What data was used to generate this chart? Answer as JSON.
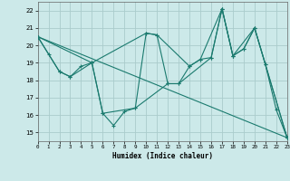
{
  "xlabel": "Humidex (Indice chaleur)",
  "background_color": "#cce9e9",
  "grid_color": "#aacccc",
  "line_color": "#1a7a6e",
  "series": [
    {
      "x": [
        0,
        1,
        2,
        3,
        4,
        5,
        6,
        7,
        8,
        9,
        10,
        11,
        12,
        13,
        14,
        15,
        16,
        17,
        18,
        19,
        20,
        21,
        22,
        23
      ],
      "y": [
        20.5,
        19.5,
        18.5,
        18.2,
        18.8,
        19.0,
        16.1,
        15.4,
        16.2,
        16.4,
        20.7,
        20.6,
        17.8,
        17.8,
        18.8,
        19.2,
        19.3,
        22.1,
        19.4,
        19.8,
        21.0,
        18.9,
        16.3,
        14.7
      ]
    },
    {
      "x": [
        0,
        23
      ],
      "y": [
        20.5,
        14.7
      ]
    },
    {
      "x": [
        0,
        5,
        10,
        11,
        14,
        15,
        17,
        18,
        20,
        21,
        23
      ],
      "y": [
        20.5,
        19.0,
        20.7,
        20.6,
        18.8,
        19.2,
        22.1,
        19.4,
        21.0,
        18.9,
        14.7
      ]
    },
    {
      "x": [
        0,
        2,
        3,
        5,
        6,
        9,
        12,
        13,
        16,
        17,
        18,
        19,
        20,
        23
      ],
      "y": [
        20.5,
        18.5,
        18.2,
        19.0,
        16.1,
        16.4,
        17.8,
        17.8,
        19.3,
        22.1,
        19.4,
        19.8,
        21.0,
        14.7
      ]
    }
  ],
  "xlim": [
    0,
    23
  ],
  "ylim": [
    14.5,
    22.5
  ],
  "yticks": [
    15,
    16,
    17,
    18,
    19,
    20,
    21,
    22
  ],
  "xticks": [
    0,
    1,
    2,
    3,
    4,
    5,
    6,
    7,
    8,
    9,
    10,
    11,
    12,
    13,
    14,
    15,
    16,
    17,
    18,
    19,
    20,
    21,
    22,
    23
  ]
}
